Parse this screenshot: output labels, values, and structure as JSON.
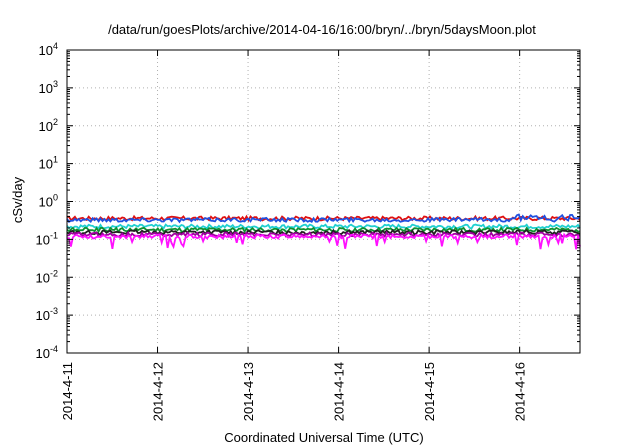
{
  "chart_data": {
    "type": "line",
    "title": "/data/run/goesPlots/archive/2014-04-16/16:00/bryn/../bryn/5daysMoon.plot",
    "xlabel": "Coordinated Universal Time (UTC)",
    "ylabel": "cSv/day",
    "yscale": "log",
    "ylim": [
      0.0001,
      10000
    ],
    "xlim": [
      "2014-04-11",
      "2014-04-16 16:00"
    ],
    "xticks": [
      "2014-4-11",
      "2014-4-12",
      "2014-4-13",
      "2014-4-14",
      "2014-4-15",
      "2014-4-16"
    ],
    "yticks": [
      {
        "base": "10",
        "exp": "4"
      },
      {
        "base": "10",
        "exp": "3"
      },
      {
        "base": "10",
        "exp": "2"
      },
      {
        "base": "10",
        "exp": "1"
      },
      {
        "base": "10",
        "exp": "0"
      },
      {
        "base": "10",
        "exp": "-1"
      },
      {
        "base": "10",
        "exp": "-2"
      },
      {
        "base": "10",
        "exp": "-3"
      },
      {
        "base": "10",
        "exp": "-4"
      }
    ],
    "grid": true,
    "series": [
      {
        "color": "#e01010",
        "level": 0.36
      },
      {
        "color": "#2050e0",
        "level": 0.33
      },
      {
        "color": "#20d0d0",
        "level": 0.22
      },
      {
        "color": "#109030",
        "level": 0.18
      },
      {
        "color": "#202020",
        "level": 0.155
      },
      {
        "color": "#a000a0",
        "level": 0.135
      },
      {
        "color": "#ff10ff",
        "level": 0.12
      }
    ]
  }
}
